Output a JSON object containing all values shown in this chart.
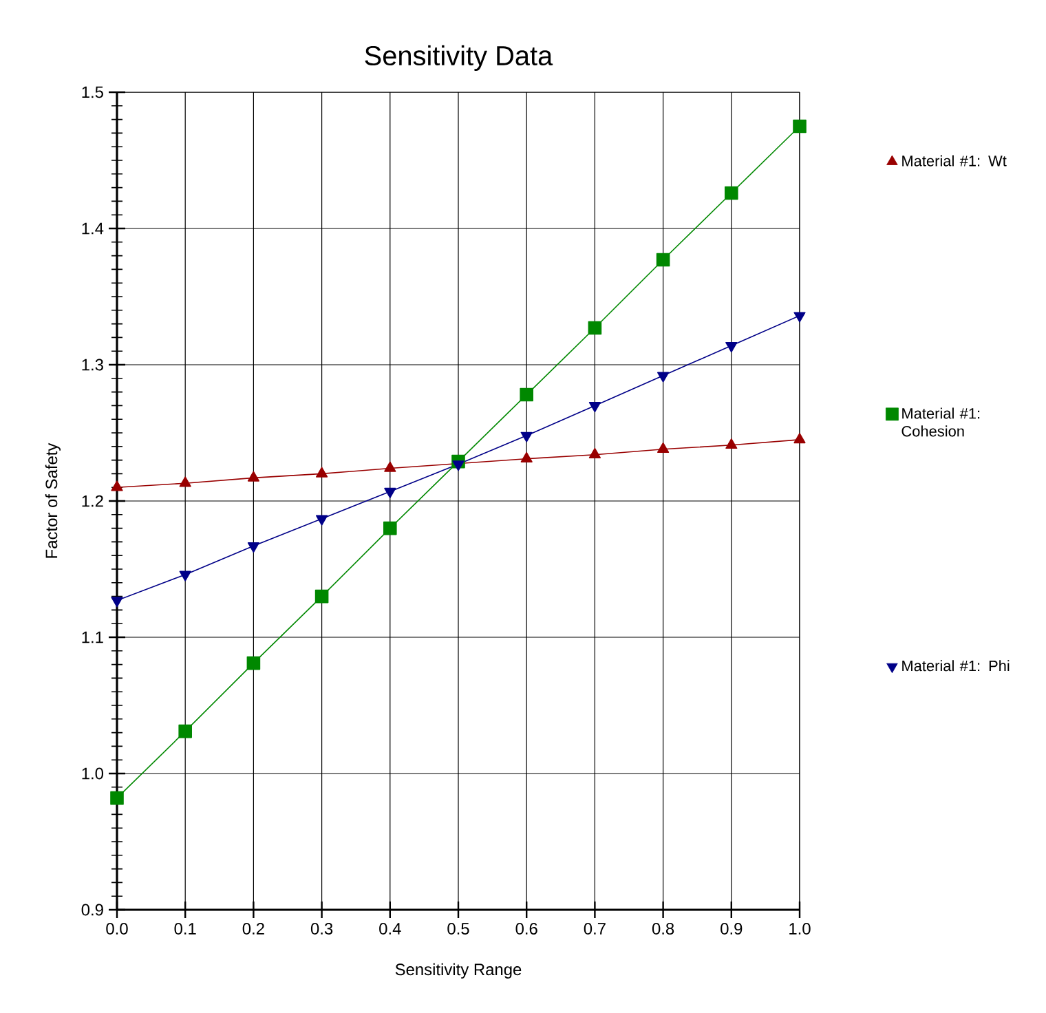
{
  "chart_data": {
    "type": "line",
    "title": "Sensitivity Data",
    "xlabel": "Sensitivity Range",
    "ylabel": "Factor of Safety",
    "x": [
      0,
      0.1,
      0.2,
      0.3,
      0.4,
      0.5,
      0.6,
      0.7,
      0.8,
      0.9,
      1.0
    ],
    "series": [
      {
        "name": "Material #1: Wt",
        "color": "#990000",
        "marker": "triangle",
        "values": [
          1.21,
          1.213,
          1.217,
          1.22,
          1.224,
          null,
          1.231,
          1.234,
          1.238,
          1.241,
          1.245
        ]
      },
      {
        "name": "Material #1: Cohesion",
        "color": "#008800",
        "marker": "square",
        "values": [
          0.982,
          1.031,
          1.081,
          1.13,
          1.18,
          1.229,
          1.278,
          1.327,
          1.377,
          1.426,
          1.475
        ]
      },
      {
        "name": "Material #1: Phi",
        "color": "#000088",
        "marker": "triangle-down",
        "values": [
          1.127,
          1.146,
          1.167,
          1.187,
          1.207,
          1.227,
          1.248,
          1.27,
          1.292,
          1.314,
          1.336
        ]
      }
    ],
    "xlim": [
      0,
      1
    ],
    "ylim": [
      0.9,
      1.5
    ],
    "xticks": [
      {
        "value": 0,
        "label": "0.0"
      },
      0.1,
      0.2,
      0.3,
      0.4,
      0.5,
      0.6,
      0.7,
      0.8,
      0.9,
      {
        "value": 1,
        "label": "1.0"
      }
    ],
    "yticks": [
      0.9,
      {
        "value": 1.0,
        "label": "1.0"
      },
      1.1,
      1.2,
      1.3,
      1.4,
      1.5
    ],
    "grid": true,
    "legend": "right",
    "line_style": "solid"
  }
}
